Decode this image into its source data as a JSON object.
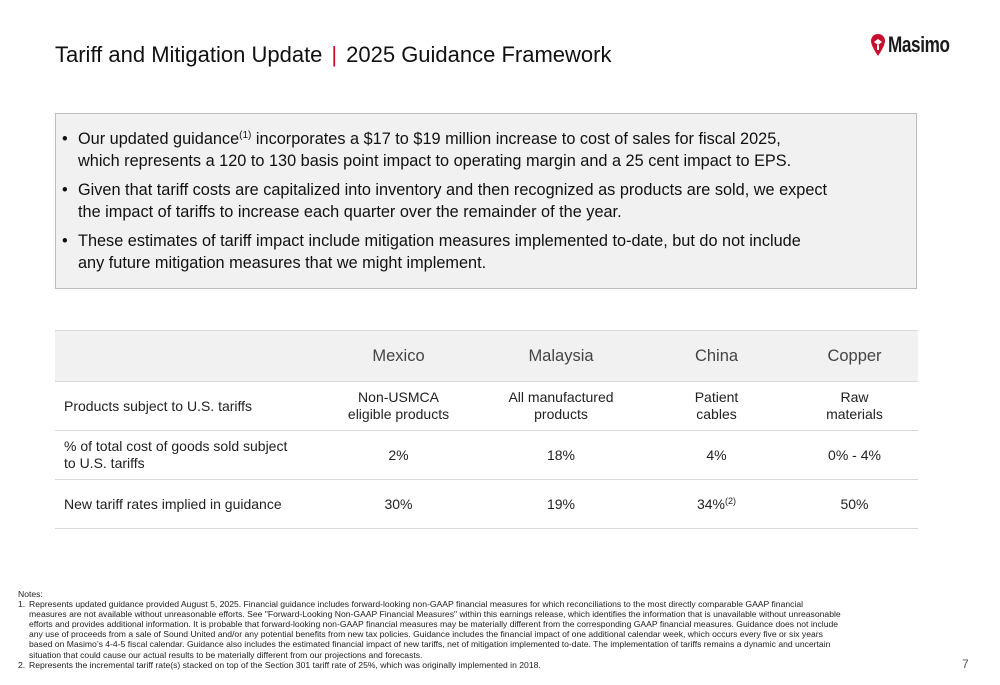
{
  "header": {
    "title_main": "Tariff and Mitigation Update",
    "separator": "|",
    "title_sub": "2025 Guidance Framework",
    "logo_text": "Masimo",
    "accent_color": "#c8102e"
  },
  "callout": {
    "bullet_glyph": "•",
    "bullets": [
      {
        "pre": "Our updated guidance",
        "sup": "(1)",
        "line1_rest": " incorporates a $17 to $19 million increase to cost of sales for fiscal 2025,",
        "line2": "which represents a 120 to 130 basis point impact to operating margin and a 25 cent impact to EPS."
      },
      {
        "line1": "Given that tariff costs are capitalized into inventory and then recognized as products are sold, we expect",
        "line2": "the impact of tariffs to increase each quarter over the remainder of the year."
      },
      {
        "line1": "These estimates of tariff impact include mitigation measures implemented to-date, but do not include",
        "line2": "any future mitigation measures that we might implement."
      }
    ]
  },
  "table": {
    "headers": [
      "",
      "Mexico",
      "Malaysia",
      "China",
      "Copper"
    ],
    "rows": [
      {
        "label": [
          "Products subject to U.S. tariffs",
          ""
        ],
        "cells": [
          [
            "Non-USMCA",
            "eligible products"
          ],
          [
            "All manufactured",
            "products"
          ],
          [
            "Patient",
            "cables"
          ],
          [
            "Raw",
            "materials"
          ]
        ]
      },
      {
        "label": [
          "% of total cost of goods sold subject",
          "to U.S. tariffs"
        ],
        "cells": [
          [
            "2%"
          ],
          [
            "18%"
          ],
          [
            "4%"
          ],
          [
            "0% - 4%"
          ]
        ]
      },
      {
        "label": [
          "New tariff rates implied in guidance",
          ""
        ],
        "cells": [
          [
            "30%"
          ],
          [
            "19%"
          ],
          [
            "34%",
            "(2)"
          ],
          [
            "50%"
          ]
        ]
      }
    ]
  },
  "notes": {
    "heading": "Notes:",
    "items": [
      {
        "num": "1.",
        "lines": [
          "Represents updated guidance provided August 5, 2025. Financial guidance includes forward-looking non-GAAP financial measures for which reconciliations to the most directly comparable GAAP financial",
          "measures are not available without unreasonable efforts. See \"Forward-Looking Non-GAAP Financial Measures\" within this earnings release, which identifies the information that is unavailable without unreasonable",
          "efforts and provides additional information. It is probable that forward-looking non-GAAP financial measures may be materially different from the corresponding GAAP financial measures. Guidance does not include",
          "any use of proceeds from a sale of Sound United and/or any potential benefits from new tax policies.  Guidance includes the financial impact of one additional calendar week, which occurs every five or six years",
          "based on Masimo’s 4-4-5 fiscal calendar.  Guidance also includes the estimated financial impact of new tariffs, net of mitigation implemented to-date. The implementation of tariffs remains a dynamic and uncertain",
          "situation that could cause our actual results to be materially different from our projections and forecasts."
        ]
      },
      {
        "num": "2.",
        "lines": [
          "Represents the incremental tariff rate(s) stacked on top of the Section 301 tariff rate of 25%, which was originally implemented in 2018."
        ]
      }
    ]
  },
  "page_number": "7"
}
